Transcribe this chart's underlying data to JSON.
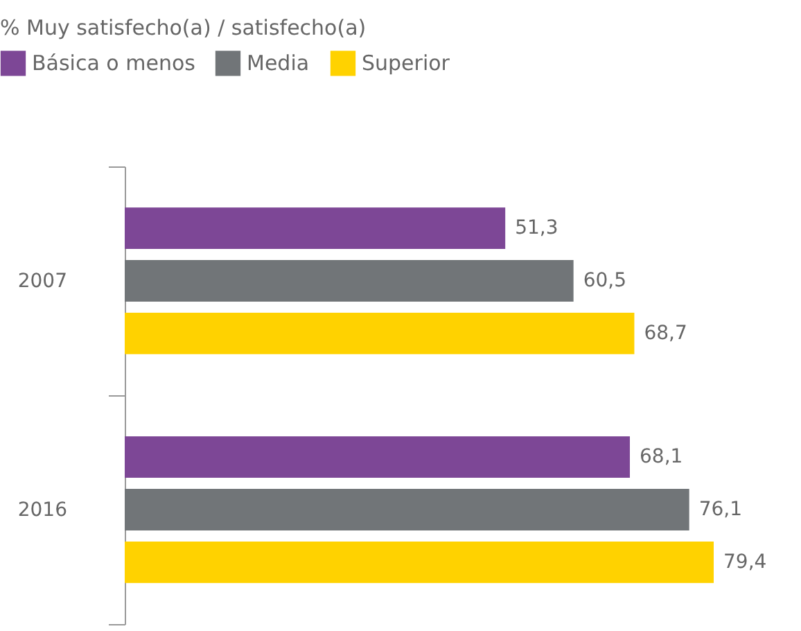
{
  "chart_data": {
    "type": "bar",
    "orientation": "horizontal",
    "title": "% Muy satisfecho(a) / satisfecho(a)",
    "categories": [
      "2007",
      "2016"
    ],
    "series": [
      {
        "name": "Básica o menos",
        "color": "#7d4796",
        "values": [
          51.3,
          68.1
        ],
        "value_labels": [
          "51,3",
          "68,1"
        ]
      },
      {
        "name": "Media",
        "color": "#717578",
        "values": [
          60.5,
          76.1
        ],
        "value_labels": [
          "60,5",
          "76,1"
        ]
      },
      {
        "name": "Superior",
        "color": "#ffd200",
        "values": [
          68.7,
          79.4
        ],
        "value_labels": [
          "68,7",
          "79,4"
        ]
      }
    ],
    "grid": false,
    "legend": "top left",
    "tick_labels": "y"
  }
}
